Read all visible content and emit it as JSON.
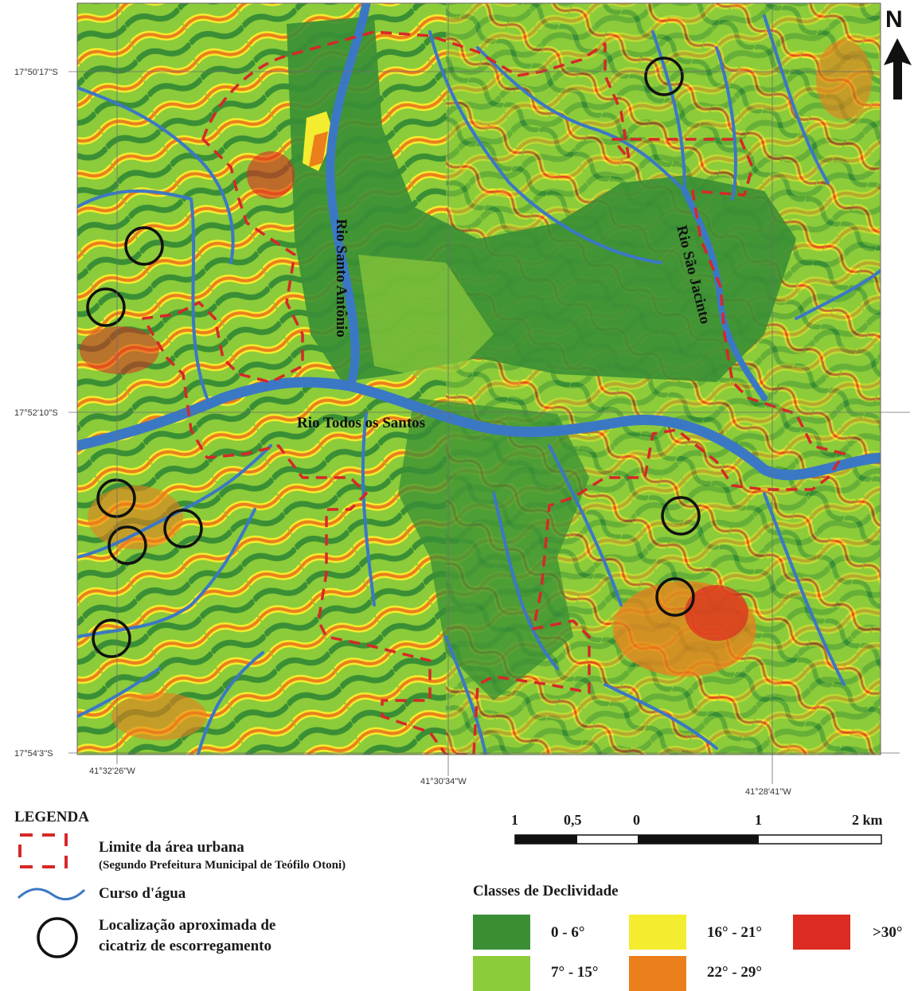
{
  "map": {
    "north_label": "N",
    "latitudes": [
      "17°50'17''S",
      "17°52'10''S",
      "17°54'3''S"
    ],
    "longitudes": [
      "41°32'26''W",
      "41°30'34''W",
      "41°28'41''W"
    ],
    "rivers": {
      "santo_antonio": "Rio Santo Antônio",
      "sao_jacinto": "Rio São Jacinto",
      "todos_os_santos": "Rio Todos os Santos"
    },
    "circle_count": 9
  },
  "legend": {
    "title": "LEGENDA",
    "urban_limit": "Limite da área urbana",
    "urban_limit_source": "(Segundo Prefeitura Municipal de Teófilo Otoni)",
    "watercourse": "Curso d'água",
    "scar_line1": "Localização aproximada de",
    "scar_line2": "cicatriz de escorregamento"
  },
  "scale": {
    "labels": [
      "1",
      "0,5",
      "0",
      "1",
      "2 km"
    ]
  },
  "slope_classes": {
    "title": "Classes de Declividade",
    "items": [
      {
        "label": "0 - 6°",
        "color": "#3a8f35"
      },
      {
        "label": "7° - 15°",
        "color": "#8ccb3a"
      },
      {
        "label": "16° - 21°",
        "color": "#f4ec2f"
      },
      {
        "label": "22° - 29°",
        "color": "#ea7f1c"
      },
      {
        "label": ">30°",
        "color": "#dc2b20"
      }
    ]
  },
  "colors": {
    "river": "#3b78c4",
    "urban_limit": "#d62828",
    "scar_circle": "#111111"
  }
}
